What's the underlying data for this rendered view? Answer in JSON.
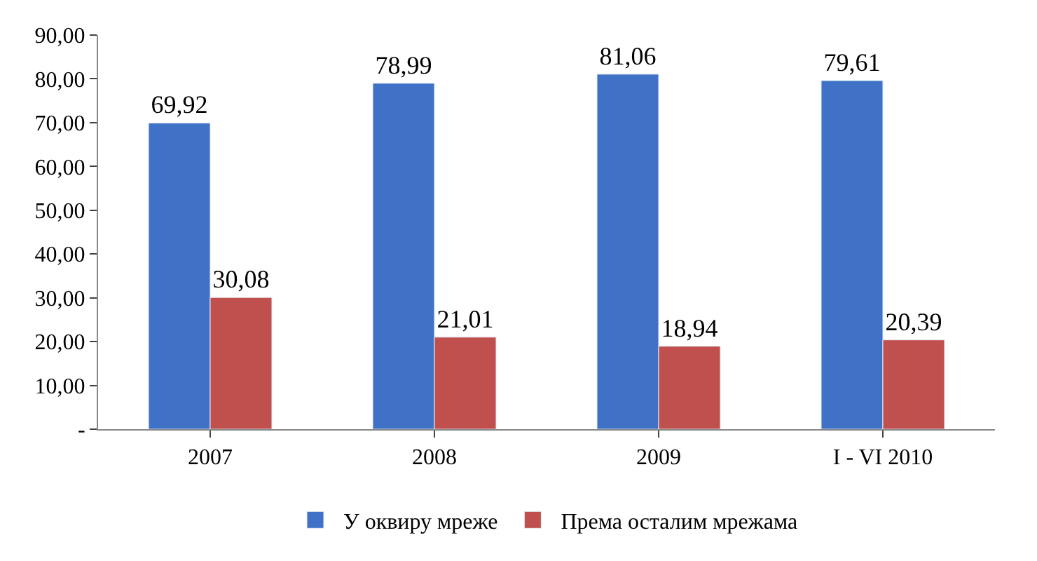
{
  "chart_data": {
    "type": "bar",
    "categories": [
      "2007",
      "2008",
      "2009",
      "I - VI 2010"
    ],
    "series": [
      {
        "name": "У оквиру мреже",
        "color": "#3f72c6",
        "values": [
          69.92,
          78.99,
          81.06,
          79.61
        ],
        "value_labels": [
          "69,92",
          "78,99",
          "81,06",
          "79,61"
        ]
      },
      {
        "name": "Према осталим мрежама",
        "color": "#c0504d",
        "values": [
          30.08,
          21.01,
          18.94,
          20.39
        ],
        "value_labels": [
          "30,08",
          "21,01",
          "18,94",
          "20,39"
        ]
      }
    ],
    "ylim": [
      0,
      90
    ],
    "yticks": [
      {
        "value": 0,
        "label": "-"
      },
      {
        "value": 10,
        "label": "10,00"
      },
      {
        "value": 20,
        "label": "20,00"
      },
      {
        "value": 30,
        "label": "30,00"
      },
      {
        "value": 40,
        "label": "40,00"
      },
      {
        "value": 50,
        "label": "50,00"
      },
      {
        "value": 60,
        "label": "60,00"
      },
      {
        "value": 70,
        "label": "70,00"
      },
      {
        "value": 80,
        "label": "80,00"
      },
      {
        "value": 90,
        "label": "90,00"
      }
    ],
    "grid": false,
    "legend": "bottom"
  }
}
